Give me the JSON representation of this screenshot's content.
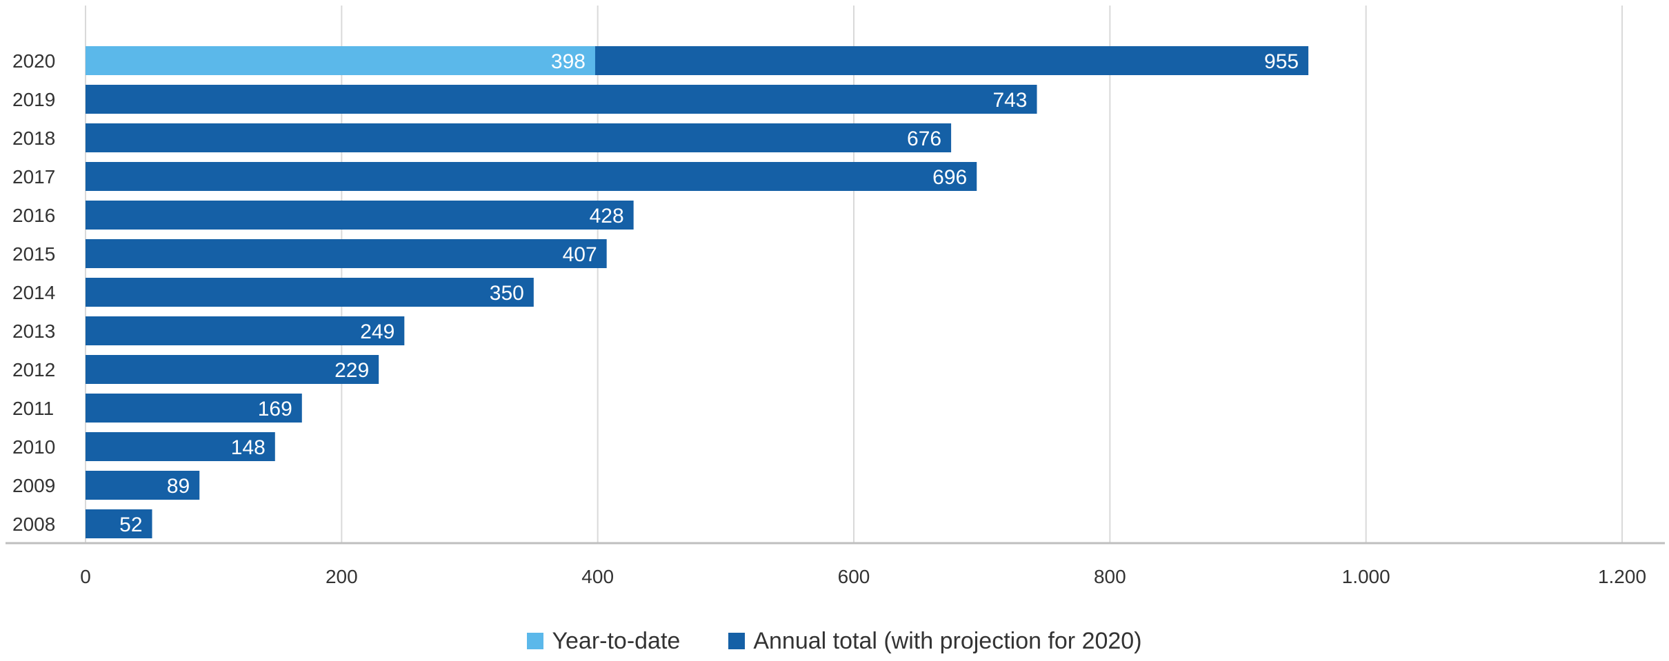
{
  "colors": {
    "ytd": "#5bb8ea",
    "annual": "#1560a6",
    "grid": "#d9d9d9",
    "axis": "#bfbfbf",
    "text": "#333333"
  },
  "legend": {
    "ytd_label": "Year-to-date",
    "annual_label": "Annual total (with projection for 2020)"
  },
  "chart_data": {
    "type": "bar",
    "orientation": "horizontal",
    "stacked": false,
    "categories": [
      "2020",
      "2019",
      "2018",
      "2017",
      "2016",
      "2015",
      "2014",
      "2013",
      "2012",
      "2011",
      "2010",
      "2009",
      "2008"
    ],
    "series": [
      {
        "name": "Annual total (with projection for 2020)",
        "values": [
          955,
          743,
          676,
          696,
          428,
          407,
          350,
          249,
          229,
          169,
          148,
          89,
          52
        ]
      },
      {
        "name": "Year-to-date",
        "values": [
          398,
          null,
          null,
          null,
          null,
          null,
          null,
          null,
          null,
          null,
          null,
          null,
          null
        ]
      }
    ],
    "xlim": [
      0,
      1200
    ],
    "xticks": [
      0,
      200,
      400,
      600,
      800,
      1000,
      1200
    ],
    "xtick_labels": [
      "0",
      "200",
      "400",
      "600",
      "800",
      "1.000",
      "1.200"
    ],
    "grid": true,
    "legend_position": "bottom"
  }
}
